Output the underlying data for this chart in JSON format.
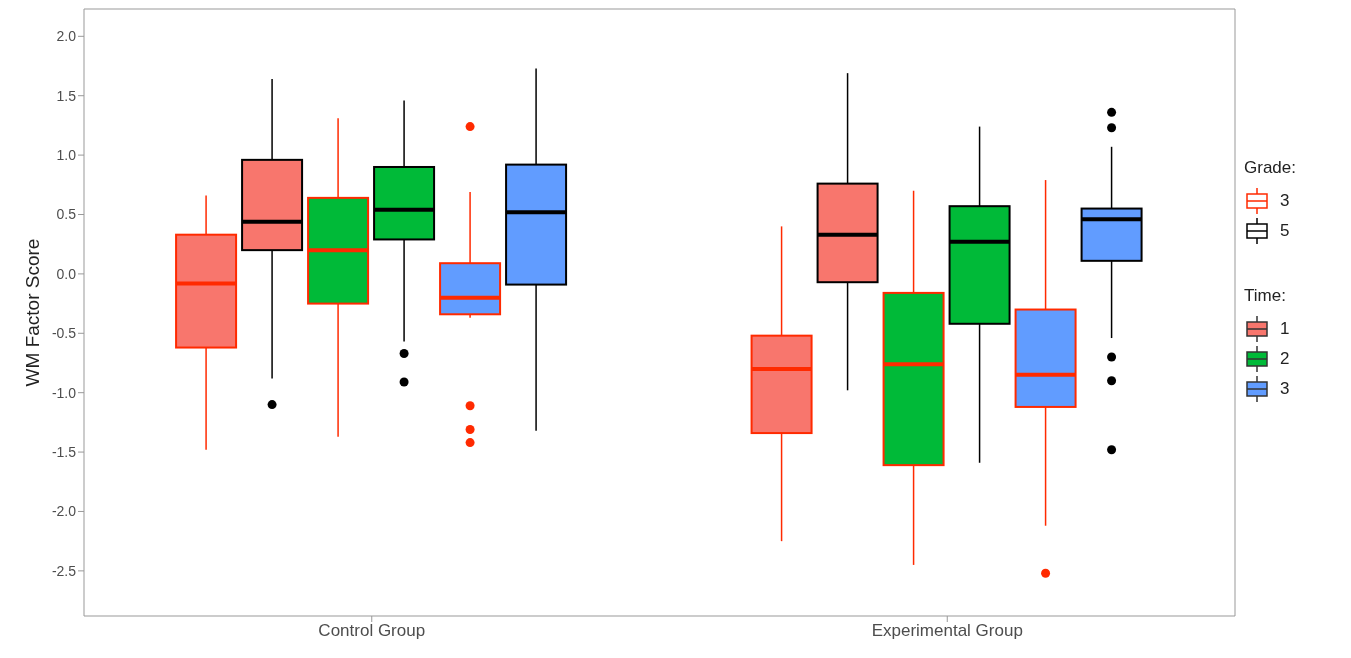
{
  "chart_data": {
    "type": "box",
    "ylabel": "WM Factor Score",
    "categories": [
      "Control Group",
      "Experimental Group"
    ],
    "ylim": [
      -2.88,
      2.23
    ],
    "yticks": [
      {
        "value": -2.5,
        "label": "-2.5"
      },
      {
        "value": -2,
        "label": "-2.0"
      },
      {
        "value": -1.5,
        "label": "-1.5"
      },
      {
        "value": -1,
        "label": "-1.0"
      },
      {
        "value": -0.5,
        "label": "-0.5"
      },
      {
        "value": 0,
        "label": "0.0"
      },
      {
        "value": 0.5,
        "label": "0.5"
      },
      {
        "value": 1,
        "label": "1.0"
      },
      {
        "value": 1.5,
        "label": "1.5"
      },
      {
        "value": 2,
        "label": "2.0"
      }
    ],
    "legend": "right",
    "legend_title": "Time:",
    "annotations": [
      "Grade:",
      "3",
      "5"
    ],
    "series": [
      {
        "name": "1",
        "color": "#f8766d",
        "colors": [
          "#ff2a00",
          "#ff2a00"
        ],
        "boxes": [
          {
            "low": -1.48,
            "q1": -0.62,
            "median": -0.08,
            "q3": 0.33,
            "high": 0.66
          },
          {
            "low": -2.25,
            "q1": -1.34,
            "median": -0.8,
            "q3": -0.52,
            "high": 0.4
          }
        ]
      },
      {
        "color": "#f8766d",
        "colors": [
          "#000000",
          "#000000"
        ],
        "boxes": [
          {
            "low": -0.88,
            "q1": 0.2,
            "median": 0.44,
            "q3": 0.96,
            "high": 1.64,
            "outliers": [
              -1.1
            ]
          },
          {
            "low": -0.98,
            "q1": -0.07,
            "median": 0.33,
            "q3": 0.76,
            "high": 1.69
          }
        ]
      },
      {
        "name": "2",
        "color": "#00ba38",
        "colors": [
          "#ff2a00",
          "#ff2a00"
        ],
        "boxes": [
          {
            "low": -1.37,
            "q1": -0.25,
            "median": 0.2,
            "q3": 0.64,
            "high": 1.31
          },
          {
            "low": -2.45,
            "q1": -1.61,
            "median": -0.76,
            "q3": -0.16,
            "high": 0.7
          }
        ]
      },
      {
        "color": "#00ba38",
        "colors": [
          "#000000",
          "#000000"
        ],
        "boxes": [
          {
            "low": -0.57,
            "q1": 0.29,
            "median": 0.54,
            "q3": 0.9,
            "high": 1.46,
            "outliers": [
              -0.67,
              -0.91
            ]
          },
          {
            "low": -1.59,
            "q1": -0.42,
            "median": 0.27,
            "q3": 0.57,
            "high": 1.24
          }
        ]
      },
      {
        "name": "3",
        "color": "#619cff",
        "colors": [
          "#ff2a00",
          "#ff2a00"
        ],
        "boxes": [
          {
            "low": -0.37,
            "q1": -0.34,
            "median": -0.2,
            "q3": 0.09,
            "high": 0.69,
            "outliers": [
              1.24,
              -1.11,
              -1.31,
              -1.42
            ]
          },
          {
            "low": -2.12,
            "q1": -1.12,
            "median": -0.85,
            "q3": -0.3,
            "high": 0.79,
            "outliers": [
              -2.52
            ]
          }
        ]
      },
      {
        "color": "#619cff",
        "colors": [
          "#000000",
          "#000000"
        ],
        "boxes": [
          {
            "low": -1.32,
            "q1": -0.09,
            "median": 0.52,
            "q3": 0.92,
            "high": 1.73
          },
          {
            "low": -0.54,
            "q1": 0.11,
            "median": 0.46,
            "q3": 0.55,
            "high": 1.07,
            "outliers": [
              1.36,
              1.23,
              -0.7,
              -0.9,
              -1.48
            ]
          }
        ]
      }
    ]
  }
}
